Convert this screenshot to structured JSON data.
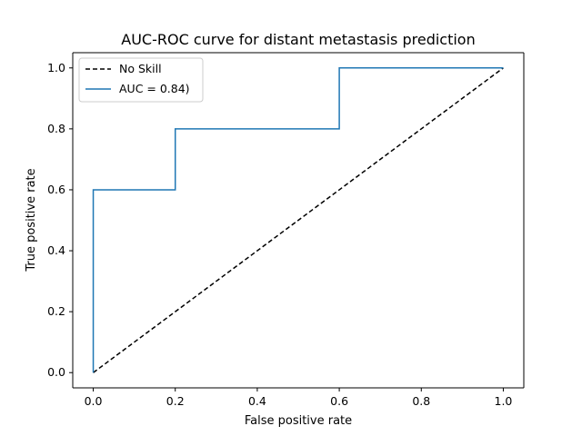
{
  "chart_data": {
    "type": "line",
    "title": "AUC-ROC curve for distant metastasis prediction",
    "xlabel": "False positive rate",
    "ylabel": "True positive rate",
    "xlim": [
      -0.05,
      1.05
    ],
    "ylim": [
      -0.05,
      1.05
    ],
    "xticks": [
      0.0,
      0.2,
      0.4,
      0.6,
      0.8,
      1.0
    ],
    "yticks": [
      0.0,
      0.2,
      0.4,
      0.6,
      0.8,
      1.0
    ],
    "xtick_labels": [
      "0.0",
      "0.2",
      "0.4",
      "0.6",
      "0.8",
      "1.0"
    ],
    "ytick_labels": [
      "0.0",
      "0.2",
      "0.4",
      "0.6",
      "0.8",
      "1.0"
    ],
    "grid": false,
    "legend_position": "top-left",
    "series": [
      {
        "name": "No Skill",
        "color": "#000000",
        "line_style": "dashed",
        "x": [
          0.0,
          1.0
        ],
        "y": [
          0.0,
          1.0
        ]
      },
      {
        "name": "AUC = 0.84)",
        "color": "#1f77b4",
        "line_style": "solid",
        "x": [
          0.0,
          0.0,
          0.2,
          0.2,
          0.6,
          0.6,
          1.0
        ],
        "y": [
          0.0,
          0.6,
          0.6,
          0.8,
          0.8,
          1.0,
          1.0
        ]
      }
    ]
  }
}
